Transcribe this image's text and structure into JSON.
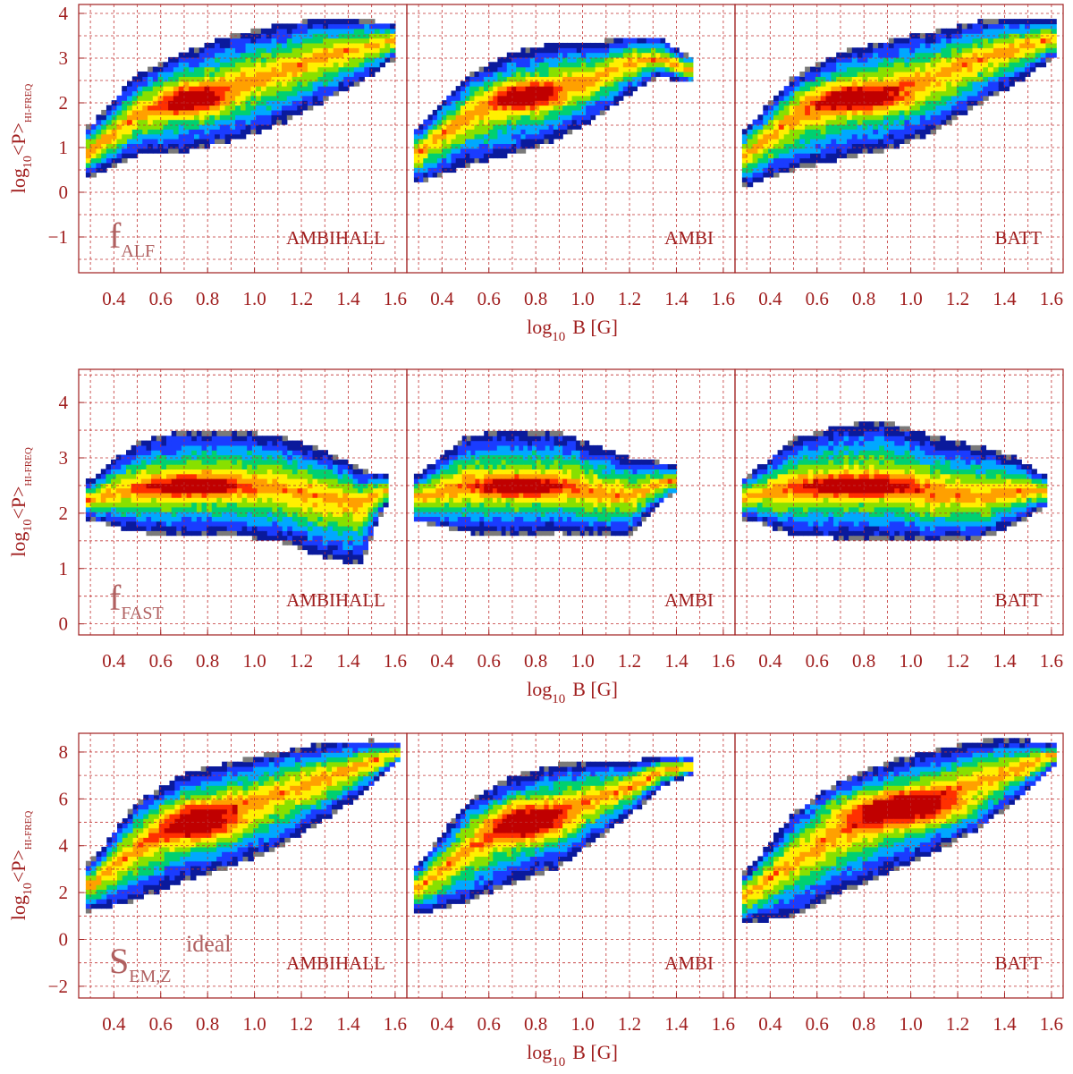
{
  "colors": {
    "axis": "#a01e1e",
    "grid": "#c03030",
    "ramp": [
      "#7a7a7a",
      "#0a1a9c",
      "#1a3cff",
      "#00a8ff",
      "#00d070",
      "#88e000",
      "#fff000",
      "#ffa000",
      "#ff3000",
      "#c00000"
    ]
  },
  "chart_data": [
    {
      "type": "heatmap",
      "ylabel": "log10<P>HI-FREQ",
      "ylabel_main": "log",
      "ylabel_sub": "10",
      "ylabel_mid": "<P>",
      "ylabel_subscript": "HI-FREQ",
      "xlabel_main": "log",
      "xlabel_sub": "10",
      "xlabel_tail": "B [G]",
      "ylim": [
        -1.8,
        4.2
      ],
      "yticks": [
        -1,
        0,
        1,
        2,
        3,
        4
      ],
      "yticklabels": [
        "−1",
        "0",
        "1",
        "2",
        "3",
        "4"
      ],
      "quantity_main": "f",
      "quantity_sub": "ALF",
      "quantity_sup": "",
      "panels": [
        {
          "label": "AMBIHALL",
          "xlim": [
            0.25,
            1.65
          ],
          "xticks": [
            0.4,
            0.6,
            0.8,
            1.0,
            1.2,
            1.4,
            1.6
          ],
          "xticklabels": [
            "0.4",
            "0.6",
            "0.8",
            "1.0",
            "1.2",
            "1.4",
            "1.6"
          ],
          "ridge": [
            [
              0.3,
              0.9
            ],
            [
              0.5,
              1.75
            ],
            [
              0.7,
              2.1
            ],
            [
              0.9,
              2.4
            ],
            [
              1.1,
              2.7
            ],
            [
              1.3,
              3.05
            ],
            [
              1.5,
              3.3
            ],
            [
              1.58,
              3.4
            ]
          ],
          "width_up": [
            0.6,
            0.9,
            1.05,
            1.1,
            1.05,
            0.85,
            0.55,
            0.35
          ],
          "width_down": [
            0.55,
            0.9,
            1.2,
            1.25,
            1.2,
            1.0,
            0.7,
            0.45
          ],
          "peak": [
            0.74,
            2.05
          ],
          "peak_spread": [
            0.09,
            0.22
          ]
        },
        {
          "label": "AMBI",
          "xlim": [
            0.25,
            1.65
          ],
          "xticks": [
            0.4,
            0.6,
            0.8,
            1.0,
            1.2,
            1.4,
            1.6
          ],
          "xticklabels": [
            "0.4",
            "0.6",
            "0.8",
            "1.0",
            "1.2",
            "1.4",
            "1.6"
          ],
          "ridge": [
            [
              0.3,
              0.9
            ],
            [
              0.5,
              1.7
            ],
            [
              0.7,
              2.1
            ],
            [
              0.9,
              2.35
            ],
            [
              1.05,
              2.55
            ],
            [
              1.2,
              2.9
            ],
            [
              1.33,
              3.0
            ],
            [
              1.45,
              2.75
            ]
          ],
          "width_up": [
            0.55,
            0.9,
            1.05,
            1.0,
            0.8,
            0.6,
            0.45,
            0.3
          ],
          "width_down": [
            0.7,
            1.1,
            1.25,
            1.15,
            0.9,
            0.7,
            0.4,
            0.3
          ],
          "peak": [
            0.76,
            2.15
          ],
          "peak_spread": [
            0.1,
            0.2
          ]
        },
        {
          "label": "BATT",
          "xlim": [
            0.25,
            1.65
          ],
          "xticks": [
            0.4,
            0.6,
            0.8,
            1.0,
            1.2,
            1.4,
            1.6
          ],
          "xticklabels": [
            "0.4",
            "0.6",
            "0.8",
            "1.0",
            "1.2",
            "1.4",
            "1.6"
          ],
          "ridge": [
            [
              0.3,
              0.85
            ],
            [
              0.5,
              1.7
            ],
            [
              0.7,
              2.1
            ],
            [
              0.9,
              2.3
            ],
            [
              1.1,
              2.6
            ],
            [
              1.3,
              3.0
            ],
            [
              1.5,
              3.3
            ],
            [
              1.6,
              3.45
            ]
          ],
          "width_up": [
            0.6,
            0.9,
            1.05,
            1.1,
            1.0,
            0.85,
            0.6,
            0.4
          ],
          "width_down": [
            0.7,
            1.2,
            1.35,
            1.35,
            1.25,
            1.0,
            0.7,
            0.45
          ],
          "peak": [
            0.78,
            2.1
          ],
          "peak_spread": [
            0.14,
            0.2
          ]
        }
      ]
    },
    {
      "type": "heatmap",
      "ylabel": "log10<P>HI-FREQ",
      "ylabel_main": "log",
      "ylabel_sub": "10",
      "ylabel_mid": "<P>",
      "ylabel_subscript": "HI-FREQ",
      "xlabel_main": "log",
      "xlabel_sub": "10",
      "xlabel_tail": "B [G]",
      "ylim": [
        -0.2,
        4.6
      ],
      "yticks": [
        0,
        1,
        2,
        3,
        4
      ],
      "yticklabels": [
        "0",
        "1",
        "2",
        "3",
        "4"
      ],
      "quantity_main": "f",
      "quantity_sub": "FAST",
      "quantity_sup": "",
      "panels": [
        {
          "label": "AMBIHALL",
          "xlim": [
            0.25,
            1.65
          ],
          "xticks": [
            0.4,
            0.6,
            0.8,
            1.0,
            1.2,
            1.4,
            1.6
          ],
          "xticklabels": [
            "0.4",
            "0.6",
            "0.8",
            "1.0",
            "1.2",
            "1.4",
            "1.6"
          ],
          "ridge": [
            [
              0.3,
              2.25
            ],
            [
              0.5,
              2.45
            ],
            [
              0.7,
              2.5
            ],
            [
              0.9,
              2.5
            ],
            [
              1.1,
              2.45
            ],
            [
              1.3,
              2.3
            ],
            [
              1.45,
              2.2
            ],
            [
              1.55,
              2.4
            ]
          ],
          "width_up": [
            0.35,
            0.85,
            1.0,
            1.0,
            0.95,
            0.85,
            0.6,
            0.3
          ],
          "width_down": [
            0.35,
            0.8,
            0.9,
            0.9,
            0.95,
            1.1,
            1.15,
            0.3
          ],
          "peak": [
            0.75,
            2.5
          ],
          "peak_spread": [
            0.13,
            0.13
          ]
        },
        {
          "label": "AMBI",
          "xlim": [
            0.25,
            1.65
          ],
          "xticks": [
            0.4,
            0.6,
            0.8,
            1.0,
            1.2,
            1.4,
            1.6
          ],
          "xticklabels": [
            "0.4",
            "0.6",
            "0.8",
            "1.0",
            "1.2",
            "1.4",
            "1.6"
          ],
          "ridge": [
            [
              0.3,
              2.3
            ],
            [
              0.5,
              2.5
            ],
            [
              0.7,
              2.5
            ],
            [
              0.9,
              2.5
            ],
            [
              1.05,
              2.4
            ],
            [
              1.2,
              2.3
            ],
            [
              1.3,
              2.5
            ],
            [
              1.38,
              2.6
            ]
          ],
          "width_up": [
            0.4,
            0.9,
            1.0,
            0.95,
            0.85,
            0.7,
            0.45,
            0.25
          ],
          "width_down": [
            0.45,
            0.85,
            0.9,
            0.85,
            0.8,
            0.7,
            0.45,
            0.25
          ],
          "peak": [
            0.74,
            2.48
          ],
          "peak_spread": [
            0.12,
            0.12
          ]
        },
        {
          "label": "BATT",
          "xlim": [
            0.25,
            1.65
          ],
          "xticks": [
            0.4,
            0.6,
            0.8,
            1.0,
            1.2,
            1.4,
            1.6
          ],
          "xticklabels": [
            "0.4",
            "0.6",
            "0.8",
            "1.0",
            "1.2",
            "1.4",
            "1.6"
          ],
          "ridge": [
            [
              0.3,
              2.3
            ],
            [
              0.5,
              2.45
            ],
            [
              0.7,
              2.5
            ],
            [
              0.9,
              2.5
            ],
            [
              1.1,
              2.35
            ],
            [
              1.3,
              2.3
            ],
            [
              1.45,
              2.4
            ],
            [
              1.56,
              2.4
            ]
          ],
          "width_up": [
            0.35,
            0.9,
            1.1,
            1.15,
            1.05,
            0.9,
            0.6,
            0.3
          ],
          "width_down": [
            0.4,
            0.85,
            0.95,
            0.95,
            0.85,
            0.75,
            0.6,
            0.3
          ],
          "peak": [
            0.78,
            2.5
          ],
          "peak_spread": [
            0.16,
            0.13
          ]
        }
      ]
    },
    {
      "type": "heatmap",
      "ylabel": "log10<P>HI-FREQ",
      "ylabel_main": "log",
      "ylabel_sub": "10",
      "ylabel_mid": "<P>",
      "ylabel_subscript": "HI-FREQ",
      "xlabel_main": "log",
      "xlabel_sub": "10",
      "xlabel_tail": "B [G]",
      "ylim": [
        -2.5,
        8.8
      ],
      "yticks": [
        -2,
        0,
        2,
        4,
        6,
        8
      ],
      "yticklabels": [
        "−2",
        "0",
        "2",
        "4",
        "6",
        "8"
      ],
      "quantity_main": "S",
      "quantity_sub": "EM,Z",
      "quantity_sup": "ideal",
      "panels": [
        {
          "label": "AMBIHALL",
          "xlim": [
            0.25,
            1.65
          ],
          "xticks": [
            0.4,
            0.6,
            0.8,
            1.0,
            1.2,
            1.4,
            1.6
          ],
          "xticklabels": [
            "0.4",
            "0.6",
            "0.8",
            "1.0",
            "1.2",
            "1.4",
            "1.6"
          ],
          "ridge": [
            [
              0.3,
              2.3
            ],
            [
              0.5,
              3.9
            ],
            [
              0.7,
              5.0
            ],
            [
              0.9,
              5.6
            ],
            [
              1.1,
              6.2
            ],
            [
              1.3,
              6.9
            ],
            [
              1.5,
              7.6
            ],
            [
              1.6,
              8.0
            ]
          ],
          "width_up": [
            1.0,
            2.0,
            2.1,
            2.0,
            1.8,
            1.5,
            0.9,
            0.4
          ],
          "width_down": [
            1.1,
            2.2,
            2.5,
            2.5,
            2.3,
            1.8,
            1.1,
            0.5
          ],
          "peak": [
            0.76,
            5.0
          ],
          "peak_spread": [
            0.12,
            0.6
          ]
        },
        {
          "label": "AMBI",
          "xlim": [
            0.25,
            1.65
          ],
          "xticks": [
            0.4,
            0.6,
            0.8,
            1.0,
            1.2,
            1.4,
            1.6
          ],
          "xticklabels": [
            "0.4",
            "0.6",
            "0.8",
            "1.0",
            "1.2",
            "1.4",
            "1.6"
          ],
          "ridge": [
            [
              0.3,
              2.2
            ],
            [
              0.5,
              3.8
            ],
            [
              0.7,
              4.9
            ],
            [
              0.9,
              5.5
            ],
            [
              1.05,
              6.0
            ],
            [
              1.2,
              6.5
            ],
            [
              1.35,
              7.2
            ],
            [
              1.45,
              7.4
            ]
          ],
          "width_up": [
            1.0,
            2.0,
            2.1,
            2.0,
            1.6,
            1.1,
            0.7,
            0.4
          ],
          "width_down": [
            1.1,
            2.2,
            2.5,
            2.4,
            1.8,
            1.2,
            0.6,
            0.4
          ],
          "peak": [
            0.76,
            5.0
          ],
          "peak_spread": [
            0.12,
            0.55
          ]
        },
        {
          "label": "BATT",
          "xlim": [
            0.25,
            1.65
          ],
          "xticks": [
            0.4,
            0.6,
            0.8,
            1.0,
            1.2,
            1.4,
            1.6
          ],
          "xticklabels": [
            "0.4",
            "0.6",
            "0.8",
            "1.0",
            "1.2",
            "1.4",
            "1.6"
          ],
          "ridge": [
            [
              0.3,
              1.9
            ],
            [
              0.5,
              3.4
            ],
            [
              0.7,
              4.6
            ],
            [
              0.9,
              5.4
            ],
            [
              1.1,
              6.1
            ],
            [
              1.3,
              6.8
            ],
            [
              1.5,
              7.5
            ],
            [
              1.6,
              7.9
            ]
          ],
          "width_up": [
            1.0,
            2.0,
            2.2,
            2.2,
            2.0,
            1.7,
            1.0,
            0.5
          ],
          "width_down": [
            1.2,
            2.4,
            2.6,
            2.6,
            2.4,
            2.0,
            1.2,
            0.6
          ],
          "peak": [
            0.95,
            5.6
          ],
          "peak_spread": [
            0.2,
            0.55
          ]
        }
      ]
    }
  ]
}
